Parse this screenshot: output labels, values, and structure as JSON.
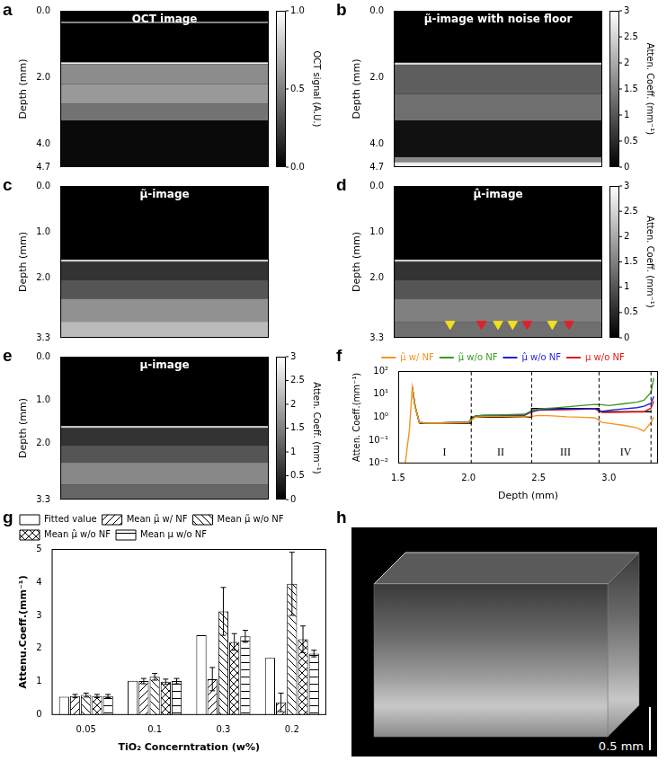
{
  "chart_data": [
    {
      "type": "image",
      "panel": "a",
      "title": "OCT image",
      "ylabel": "Depth (mm)",
      "tick_labels": "y",
      "grid": false,
      "ylim": [
        0,
        4.7
      ],
      "yticks": [
        {
          "value": 0,
          "label": "0.0"
        },
        {
          "value": 2,
          "label": "2.0"
        },
        {
          "value": 4,
          "label": "4.0"
        },
        4.7
      ],
      "bands": [
        {
          "from": 0.33,
          "to": 0.37,
          "value": 0.7
        },
        {
          "from": 1.55,
          "to": 1.6,
          "value": 0.95
        },
        {
          "from": 1.6,
          "to": 2.2,
          "value": 0.55
        },
        {
          "from": 2.2,
          "to": 2.8,
          "value": 0.6
        },
        {
          "from": 2.8,
          "to": 3.3,
          "value": 0.45
        },
        {
          "from": 3.3,
          "to": 4.7,
          "value": 0.04
        }
      ],
      "colorbar": {
        "label": "OCT signal (A.U.)",
        "range": [
          0,
          1
        ],
        "ticks": [
          {
            "value": 0,
            "label": "0.0"
          },
          0.5,
          {
            "value": 1,
            "label": "1.0"
          }
        ]
      }
    },
    {
      "type": "image",
      "panel": "b",
      "title": "μ̃-image with noise floor",
      "ylabel": "Depth (mm)",
      "tick_labels": "y",
      "grid": false,
      "ylim": [
        0,
        4.7
      ],
      "yticks": [
        {
          "value": 0,
          "label": "0.0"
        },
        {
          "value": 2,
          "label": "2.0"
        },
        {
          "value": 4,
          "label": "4.0"
        },
        4.7
      ],
      "bands": [
        {
          "from": 1.56,
          "to": 1.62,
          "value": 2.6
        },
        {
          "from": 1.62,
          "to": 2.5,
          "value": 1.1
        },
        {
          "from": 2.5,
          "to": 3.3,
          "value": 1.3
        },
        {
          "from": 3.3,
          "to": 4.4,
          "value": 0.2
        },
        {
          "from": 4.4,
          "to": 4.55,
          "value": 1.6
        },
        {
          "from": 4.55,
          "to": 4.7,
          "value": 2.8
        }
      ],
      "colorbar": {
        "label": "Atten. Coeff. (mm⁻¹)",
        "range": [
          0,
          3
        ],
        "ticks": [
          0,
          0.5,
          1,
          1.5,
          2,
          2.5,
          3
        ]
      }
    },
    {
      "type": "image",
      "panel": "c",
      "title": "μ̃-image",
      "ylabel": "Depth (mm)",
      "tick_labels": "y",
      "grid": false,
      "ylim": [
        0,
        3.3
      ],
      "yticks": [
        {
          "value": 0,
          "label": "0.0"
        },
        {
          "value": 1,
          "label": "1.0"
        },
        {
          "value": 2,
          "label": "2.0"
        },
        3.3
      ],
      "bands": [
        {
          "from": 1.6,
          "to": 1.65,
          "value": 2.4
        },
        {
          "from": 1.65,
          "to": 2.05,
          "value": 0.6
        },
        {
          "from": 2.05,
          "to": 2.45,
          "value": 1.0
        },
        {
          "from": 2.45,
          "to": 2.95,
          "value": 1.7
        },
        {
          "from": 2.95,
          "to": 3.3,
          "value": 2.2
        }
      ]
    },
    {
      "type": "image",
      "panel": "d",
      "title": "μ̂-image",
      "ylabel": "Depth (mm)",
      "tick_labels": "y",
      "grid": false,
      "xlim": [
        0,
        1
      ],
      "ylim": [
        0,
        3.3
      ],
      "yticks": [
        {
          "value": 0,
          "label": "0.0"
        },
        {
          "value": 1,
          "label": "1.0"
        },
        {
          "value": 2,
          "label": "2.0"
        },
        3.3
      ],
      "bands": [
        {
          "from": 1.6,
          "to": 1.65,
          "value": 2.4
        },
        {
          "from": 1.65,
          "to": 2.05,
          "value": 0.6
        },
        {
          "from": 2.05,
          "to": 2.45,
          "value": 1.0
        },
        {
          "from": 2.45,
          "to": 2.95,
          "value": 1.5
        },
        {
          "from": 2.95,
          "to": 3.3,
          "value": 1.3
        }
      ],
      "markers": [
        {
          "x": 0.27,
          "y": 3.0,
          "color": "#f2e01b"
        },
        {
          "x": 0.42,
          "y": 3.0,
          "color": "#e0202a"
        },
        {
          "x": 0.5,
          "y": 3.0,
          "color": "#f2e01b"
        },
        {
          "x": 0.57,
          "y": 3.0,
          "color": "#f2e01b"
        },
        {
          "x": 0.64,
          "y": 3.0,
          "color": "#e0202a"
        },
        {
          "x": 0.76,
          "y": 3.0,
          "color": "#f2e01b"
        },
        {
          "x": 0.84,
          "y": 3.0,
          "color": "#e0202a"
        }
      ],
      "colorbar": {
        "label": "Atten. Coeff. (mm⁻¹)",
        "range": [
          0,
          3
        ],
        "ticks": [
          0,
          0.5,
          1,
          1.5,
          2,
          2.5,
          3
        ]
      }
    },
    {
      "type": "image",
      "panel": "e",
      "title": "μ-image",
      "ylabel": "Depth (mm)",
      "tick_labels": "y",
      "grid": false,
      "ylim": [
        0,
        3.3
      ],
      "yticks": [
        {
          "value": 0,
          "label": "0.0"
        },
        {
          "value": 1,
          "label": "1.0"
        },
        {
          "value": 2,
          "label": "2.0"
        },
        3.3
      ],
      "bands": [
        {
          "from": 1.6,
          "to": 1.65,
          "value": 2.4
        },
        {
          "from": 1.65,
          "to": 2.05,
          "value": 0.6
        },
        {
          "from": 2.05,
          "to": 2.45,
          "value": 1.0
        },
        {
          "from": 2.45,
          "to": 2.95,
          "value": 1.6
        },
        {
          "from": 2.95,
          "to": 3.3,
          "value": 1.2
        }
      ],
      "colorbar": {
        "label": "Atten. Coeff. (mm⁻¹)",
        "range": [
          0,
          3
        ],
        "ticks": [
          0,
          0.5,
          1,
          1.5,
          2,
          2.5,
          3
        ]
      }
    },
    {
      "type": "line",
      "panel": "f",
      "xlabel": "Depth (mm)",
      "ylabel": "Atten. Coeff.(mm⁻¹)",
      "log": "y",
      "grid": false,
      "legend": "top",
      "xlim": [
        1.5,
        3.35
      ],
      "xticks": [
        1.5,
        {
          "value": 2,
          "label": "2.0"
        },
        2.5,
        {
          "value": 3,
          "label": "3.0"
        }
      ],
      "ylim": [
        0.01,
        100
      ],
      "yticks": [
        {
          "value": 0.01,
          "label": "10⁻²"
        },
        {
          "value": 0.1,
          "label": "10⁻¹"
        },
        {
          "value": 1,
          "label": "10⁰"
        },
        {
          "value": 10,
          "label": "10¹"
        },
        {
          "value": 100,
          "label": "10²"
        }
      ],
      "x": [
        1.55,
        1.58,
        1.6,
        1.62,
        1.65,
        1.7,
        1.8,
        1.9,
        2.0,
        2.05,
        2.1,
        2.2,
        2.3,
        2.4,
        2.45,
        2.5,
        2.6,
        2.7,
        2.8,
        2.9,
        2.95,
        3.0,
        3.1,
        3.2,
        3.25,
        3.3,
        3.32
      ],
      "series": [
        {
          "name": "μ̃ w/ NF",
          "color": "#f7941d",
          "values": [
            0.01,
            0.3,
            20,
            3,
            0.6,
            0.55,
            0.55,
            0.58,
            0.6,
            1.0,
            1.05,
            1.1,
            1.05,
            1.0,
            1.1,
            1.2,
            1.15,
            1.05,
            1.0,
            0.95,
            0.6,
            0.55,
            0.45,
            0.35,
            0.25,
            0.6,
            1.0
          ]
        },
        {
          "name": "μ̃ w/o NF",
          "color": "#3a9a1a",
          "values": [
            null,
            null,
            20,
            3,
            0.6,
            0.56,
            0.57,
            0.6,
            0.62,
            1.15,
            1.2,
            1.25,
            1.3,
            1.35,
            1.9,
            2.3,
            2.5,
            2.8,
            3.2,
            3.6,
            3.5,
            3.2,
            3.8,
            4.5,
            5.5,
            12,
            50
          ]
        },
        {
          "name": "μ̂ w/o NF",
          "color": "#1f1fe0",
          "values": [
            null,
            null,
            20,
            3,
            0.6,
            0.56,
            0.57,
            0.6,
            0.62,
            1.15,
            1.2,
            1.22,
            1.25,
            1.25,
            1.8,
            2.1,
            2.2,
            2.3,
            2.3,
            2.4,
            1.8,
            2.0,
            2.3,
            2.6,
            3.0,
            4,
            8
          ]
        },
        {
          "name": "μ w/o NF",
          "color": "#e41a1c",
          "values": [
            null,
            null,
            20,
            3,
            0.6,
            0.56,
            0.57,
            0.6,
            0.62,
            1.15,
            1.18,
            1.2,
            1.22,
            1.2,
            1.7,
            2.0,
            2.05,
            2.1,
            2.2,
            2.3,
            1.6,
            1.6,
            1.65,
            1.7,
            1.7,
            2.5,
            5
          ]
        }
      ],
      "fitted": {
        "color": "#000000",
        "x": [
          1.65,
          2.02,
          2.02,
          2.45,
          2.45,
          2.93,
          2.93,
          3.3
        ],
        "values": [
          0.55,
          0.55,
          1.02,
          1.02,
          2.4,
          2.4,
          1.72,
          1.72
        ]
      },
      "dividers": [
        2.02,
        2.45,
        2.93,
        3.3
      ],
      "regions": [
        {
          "label": "I",
          "x": 1.83,
          "y": 0.03
        },
        {
          "label": "II",
          "x": 2.23,
          "y": 0.03
        },
        {
          "label": "III",
          "x": 2.69,
          "y": 0.03
        },
        {
          "label": "IV",
          "x": 3.12,
          "y": 0.03
        }
      ]
    },
    {
      "type": "bar",
      "panel": "g",
      "xlabel": "TiO₂ Concerntration (w%)",
      "ylabel": "Attenu.Coeff.(mm⁻¹)",
      "grid": false,
      "legend": "top",
      "categories": [
        "0.05",
        "0.1",
        "0.3",
        "0.2"
      ],
      "ylim": [
        0,
        5
      ],
      "yticks": [
        0,
        1,
        2,
        3,
        4,
        5
      ],
      "series": [
        {
          "name": "Fitted value",
          "color": "#ffffff",
          "values": [
            0.55,
            1.03,
            2.4,
            1.72
          ]
        },
        {
          "name": "Mean μ̃ w/ NF",
          "color": "#ffffff",
          "values": [
            0.57,
            1.02,
            1.08,
            0.38
          ],
          "errors": [
            0.05,
            0.08,
            0.35,
            0.28
          ]
        },
        {
          "name": "Mean μ̃ w/o NF",
          "color": "#ffffff",
          "values": [
            0.6,
            1.15,
            3.12,
            3.95
          ],
          "errors": [
            0.06,
            0.1,
            0.72,
            0.95
          ]
        },
        {
          "name": "Mean μ̂ w/o NF",
          "color": "#ffffff",
          "values": [
            0.57,
            1.0,
            2.2,
            2.28
          ],
          "errors": [
            0.05,
            0.08,
            0.25,
            0.4
          ]
        },
        {
          "name": "Mean μ w/o NF",
          "color": "#ffffff",
          "values": [
            0.57,
            1.02,
            2.37,
            1.85
          ],
          "errors": [
            0.05,
            0.08,
            0.18,
            0.1
          ]
        }
      ]
    },
    {
      "type": "render",
      "panel": "h",
      "scale_bar": "0.5 mm"
    }
  ]
}
